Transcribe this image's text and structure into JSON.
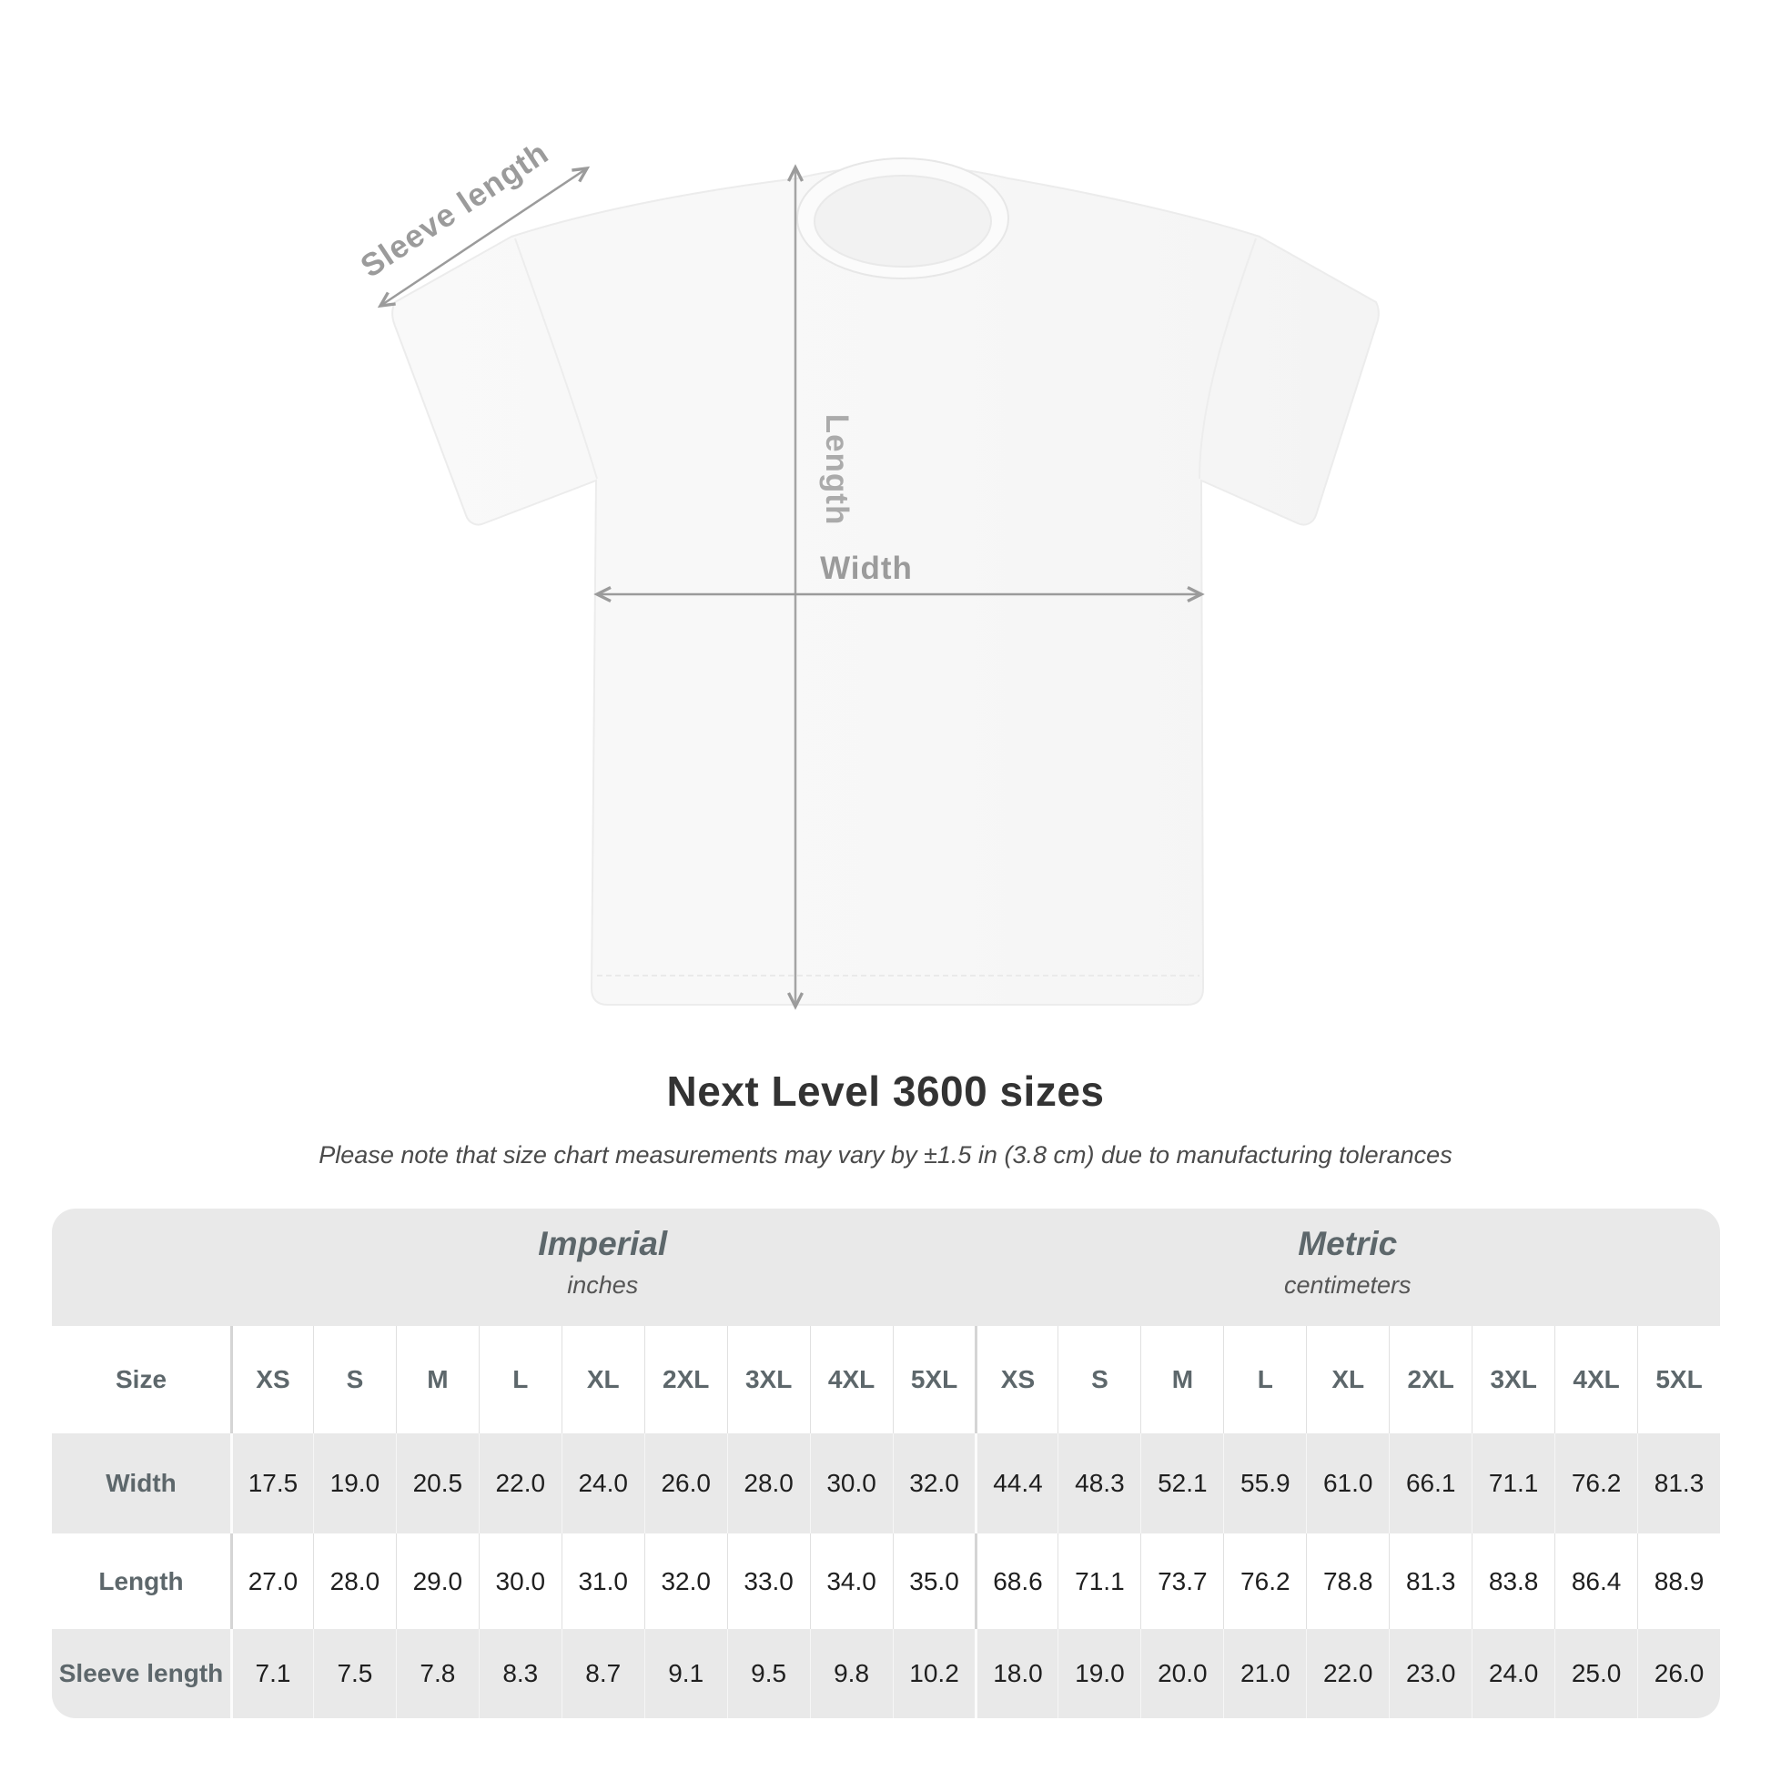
{
  "shirt_diagram": {
    "labels": {
      "sleeve_length": "Sleeve length",
      "length": "Length",
      "width": "Width"
    }
  },
  "title": "Next Level 3600 sizes",
  "subtitle": "Please note that size chart measurements may vary by ±1.5 in (3.8 cm) due to manufacturing tolerances",
  "colors": {
    "annotation_gray": "#9b9b9b",
    "table_band_gray": "#e9e9e9",
    "label_slate": "#5d676b",
    "value_dark": "#1f1f1f"
  },
  "table": {
    "groups": [
      {
        "label": "Imperial",
        "sublabel": "inches"
      },
      {
        "label": "Metric",
        "sublabel": "centimeters"
      }
    ],
    "size_header": {
      "label": "Size",
      "values": [
        "XS",
        "S",
        "M",
        "L",
        "XL",
        "2XL",
        "3XL",
        "4XL",
        "5XL",
        "XS",
        "S",
        "M",
        "L",
        "XL",
        "2XL",
        "3XL",
        "4XL",
        "5XL"
      ]
    },
    "rows": [
      {
        "label": "Width",
        "values": [
          "17.5",
          "19.0",
          "20.5",
          "22.0",
          "24.0",
          "26.0",
          "28.0",
          "30.0",
          "32.0",
          "44.4",
          "48.3",
          "52.1",
          "55.9",
          "61.0",
          "66.1",
          "71.1",
          "76.2",
          "81.3"
        ]
      },
      {
        "label": "Length",
        "values": [
          "27.0",
          "28.0",
          "29.0",
          "30.0",
          "31.0",
          "32.0",
          "33.0",
          "34.0",
          "35.0",
          "68.6",
          "71.1",
          "73.7",
          "76.2",
          "78.8",
          "81.3",
          "83.8",
          "86.4",
          "88.9"
        ]
      },
      {
        "label": "Sleeve length",
        "values": [
          "7.1",
          "7.5",
          "7.8",
          "8.3",
          "8.7",
          "9.1",
          "9.5",
          "9.8",
          "10.2",
          "18.0",
          "19.0",
          "20.0",
          "21.0",
          "22.0",
          "23.0",
          "24.0",
          "25.0",
          "26.0"
        ]
      }
    ]
  },
  "chart_data": {
    "type": "table",
    "title": "Next Level 3600 sizes",
    "note": "Please note that size chart measurements may vary by ±1.5 in (3.8 cm) due to manufacturing tolerances",
    "unit_groups": [
      "Imperial (inches)",
      "Metric (centimeters)"
    ],
    "columns": [
      "Size",
      "XS",
      "S",
      "M",
      "L",
      "XL",
      "2XL",
      "3XL",
      "4XL",
      "5XL",
      "XS",
      "S",
      "M",
      "L",
      "XL",
      "2XL",
      "3XL",
      "4XL",
      "5XL"
    ],
    "rows": [
      [
        "Width",
        17.5,
        19.0,
        20.5,
        22.0,
        24.0,
        26.0,
        28.0,
        30.0,
        32.0,
        44.4,
        48.3,
        52.1,
        55.9,
        61.0,
        66.1,
        71.1,
        76.2,
        81.3
      ],
      [
        "Length",
        27.0,
        28.0,
        29.0,
        30.0,
        31.0,
        32.0,
        33.0,
        34.0,
        35.0,
        68.6,
        71.1,
        73.7,
        76.2,
        78.8,
        81.3,
        83.8,
        86.4,
        88.9
      ],
      [
        "Sleeve length",
        7.1,
        7.5,
        7.8,
        8.3,
        8.7,
        9.1,
        9.5,
        9.8,
        10.2,
        18.0,
        19.0,
        20.0,
        21.0,
        22.0,
        23.0,
        24.0,
        25.0,
        26.0
      ]
    ]
  }
}
